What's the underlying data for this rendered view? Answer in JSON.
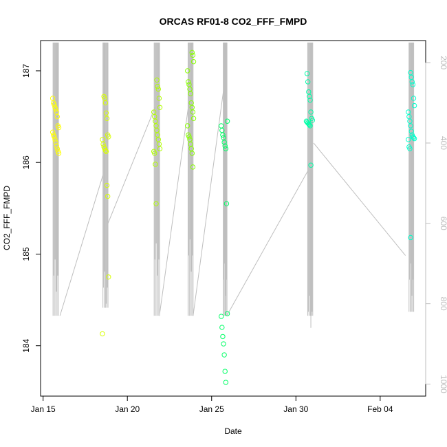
{
  "chart_data": {
    "type": "scatter",
    "title": "ORCAS RF01-8 CO2_FFF_FMPD",
    "xlabel": "Date",
    "ylabel": "CO2_FFF_FMPD",
    "x_ticks": [
      "Jan 15",
      "Jan 20",
      "Jan 25",
      "Jan 30",
      "Feb 04"
    ],
    "x_tick_days": [
      15,
      20,
      25,
      30,
      35
    ],
    "xlim_days": [
      14.85,
      37.7
    ],
    "y_ticks": [
      184,
      185,
      186,
      187
    ],
    "ylim": [
      183.45,
      187.33
    ],
    "right_axis": {
      "ticks": [
        200,
        400,
        600,
        800,
        1000
      ],
      "lim": [
        1030,
        145
      ],
      "color": "#bebebe",
      "label": ""
    },
    "colors": {
      "flight_gradient": [
        "#ffff00",
        "#d8ff00",
        "#b0ff00",
        "#88ff00",
        "#58ff1c",
        "#00ff66",
        "#00ffa8",
        "#00ffcc"
      ],
      "trace": "#bebebe",
      "frame": "#000000"
    },
    "series": [
      {
        "color": "#ffff00",
        "x_days": 15.75,
        "values": [
          186.7,
          186.65,
          186.63,
          186.6,
          186.58,
          186.55,
          186.5,
          186.4,
          186.38,
          186.33,
          186.3,
          186.28,
          186.25,
          186.22,
          186.18,
          186.15,
          186.12,
          186.1
        ]
      },
      {
        "color": "#d8ff00",
        "x_days": 18.7,
        "values": [
          186.72,
          186.7,
          186.65,
          186.54,
          186.48,
          186.3,
          186.28,
          186.25,
          186.2,
          186.17,
          186.15,
          186.13,
          186.12,
          185.75,
          185.63,
          184.75,
          184.13
        ]
      },
      {
        "color": "#b0ff00",
        "x_days": 21.75,
        "values": [
          186.9,
          186.83,
          186.8,
          186.7,
          186.6,
          186.55,
          186.5,
          186.45,
          186.4,
          186.35,
          186.3,
          186.25,
          186.2,
          186.15,
          186.12,
          186.1,
          185.98,
          185.55
        ]
      },
      {
        "color": "#88ff00",
        "x_days": 23.75,
        "values": [
          187.2,
          187.17,
          187.1,
          187.0,
          186.88,
          186.85,
          186.8,
          186.75,
          186.65,
          186.6,
          186.55,
          186.48,
          186.4,
          186.3,
          186.28,
          186.25,
          186.2,
          186.15,
          186.1,
          185.95
        ]
      },
      {
        "color": "#00ff66",
        "x_days": 25.75,
        "values": [
          186.45,
          186.4,
          186.35,
          186.3,
          186.27,
          186.22,
          186.18,
          186.15,
          185.55,
          184.35,
          184.32,
          184.2,
          184.1,
          184.02,
          183.9,
          183.72,
          183.6
        ]
      },
      {
        "color": "#00ffa8",
        "x_days": 30.8,
        "values": [
          186.97,
          186.88,
          186.77,
          186.72,
          186.68,
          186.55,
          186.48,
          186.46,
          186.45,
          186.44,
          186.43,
          186.42,
          186.41,
          186.4,
          185.97
        ]
      },
      {
        "color": "#00ffcc",
        "x_days": 36.85,
        "values": [
          186.98,
          186.93,
          186.88,
          186.85,
          186.7,
          186.62,
          186.55,
          186.5,
          186.45,
          186.4,
          186.34,
          186.3,
          186.28,
          186.27,
          186.26,
          186.25,
          186.17,
          186.15,
          185.18
        ]
      }
    ],
    "grid": false,
    "legend": "none"
  }
}
